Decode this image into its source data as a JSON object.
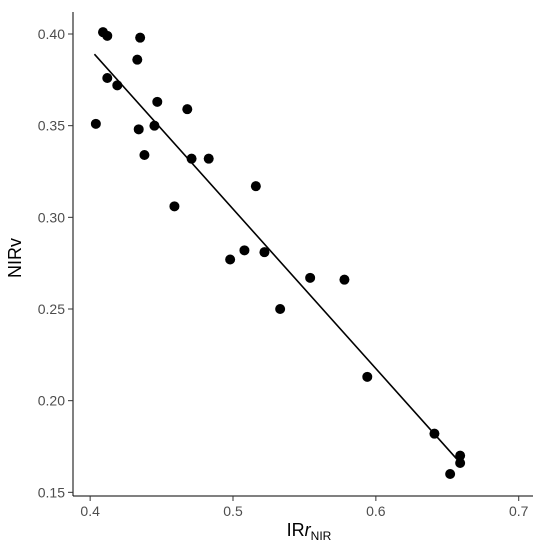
{
  "chart_data": {
    "type": "scatter",
    "title": "",
    "xlabel": {
      "prefix": "IR",
      "italic": "r",
      "subscript": "NIR"
    },
    "ylabel": "NIRv",
    "xlim": [
      0.388,
      0.71
    ],
    "ylim": [
      0.148,
      0.412
    ],
    "x_ticks": [
      0.4,
      0.5,
      0.6,
      0.7
    ],
    "x_tick_labels": [
      "0.4",
      "0.5",
      "0.6",
      "0.7"
    ],
    "y_ticks": [
      0.15,
      0.2,
      0.25,
      0.3,
      0.35,
      0.4
    ],
    "y_tick_labels": [
      "0.15",
      "0.20",
      "0.25",
      "0.30",
      "0.35",
      "0.40"
    ],
    "grid": false,
    "legend": "none",
    "point_color": "#000000",
    "points": [
      {
        "x": 0.404,
        "y": 0.351
      },
      {
        "x": 0.409,
        "y": 0.401
      },
      {
        "x": 0.412,
        "y": 0.399
      },
      {
        "x": 0.412,
        "y": 0.376
      },
      {
        "x": 0.419,
        "y": 0.372
      },
      {
        "x": 0.433,
        "y": 0.386
      },
      {
        "x": 0.435,
        "y": 0.398
      },
      {
        "x": 0.434,
        "y": 0.348
      },
      {
        "x": 0.438,
        "y": 0.334
      },
      {
        "x": 0.445,
        "y": 0.35
      },
      {
        "x": 0.447,
        "y": 0.363
      },
      {
        "x": 0.459,
        "y": 0.306
      },
      {
        "x": 0.468,
        "y": 0.359
      },
      {
        "x": 0.471,
        "y": 0.332
      },
      {
        "x": 0.483,
        "y": 0.332
      },
      {
        "x": 0.498,
        "y": 0.277
      },
      {
        "x": 0.508,
        "y": 0.282
      },
      {
        "x": 0.516,
        "y": 0.317
      },
      {
        "x": 0.522,
        "y": 0.281
      },
      {
        "x": 0.533,
        "y": 0.25
      },
      {
        "x": 0.554,
        "y": 0.267
      },
      {
        "x": 0.578,
        "y": 0.266
      },
      {
        "x": 0.594,
        "y": 0.213
      },
      {
        "x": 0.641,
        "y": 0.182
      },
      {
        "x": 0.652,
        "y": 0.16
      },
      {
        "x": 0.659,
        "y": 0.17
      },
      {
        "x": 0.659,
        "y": 0.166
      }
    ],
    "fit_line": {
      "x": [
        0.403,
        0.658
      ],
      "y": [
        0.389,
        0.167
      ]
    }
  }
}
